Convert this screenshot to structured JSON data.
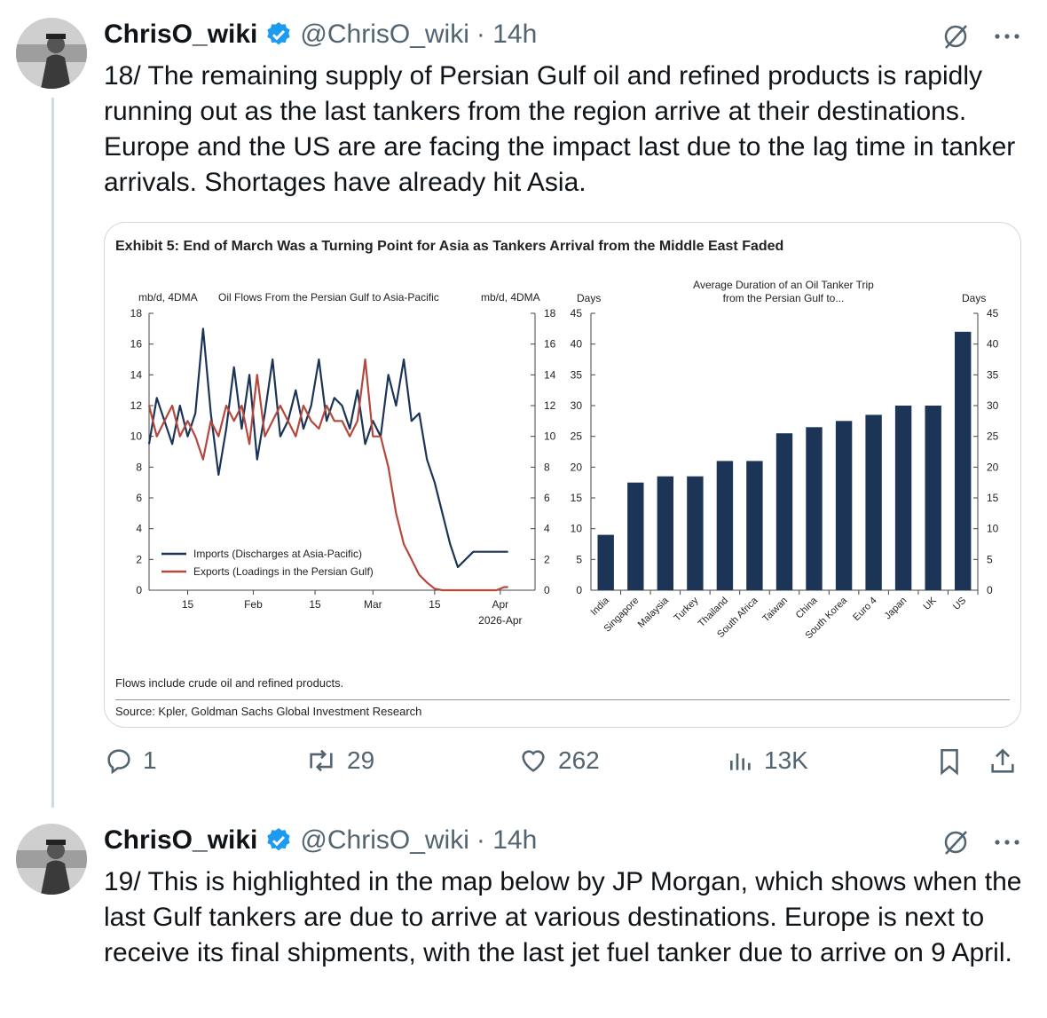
{
  "tweets": [
    {
      "name": "ChrisO_wiki",
      "handle": "@ChrisO_wiki",
      "time": "· 14h",
      "text": "18/ The remaining supply of Persian Gulf oil and refined products is rapidly running out as the last tankers from the region arrive at their destinations. Europe and the US are are facing the impact last due to the lag time in tanker arrivals. Shortages have already hit Asia.",
      "replies": "1",
      "reposts": "29",
      "likes": "262",
      "views": "13K"
    },
    {
      "name": "ChrisO_wiki",
      "handle": "@ChrisO_wiki",
      "time": "· 14h",
      "text": "19/ This is highlighted in the map below by JP Morgan, which shows when the last Gulf tankers are due to arrive at various destinations. Europe is next to receive its final shipments, with the last jet fuel tanker due to arrive on 9 April."
    }
  ],
  "exhibit": {
    "title": "Exhibit 5: End of March Was a Turning Point for Asia as Tankers Arrival from the Middle East Faded",
    "note": "Flows include crude oil and refined products.",
    "source": "Source: Kpler, Goldman Sachs Global Investment Research"
  },
  "chart_data": [
    {
      "type": "line",
      "title": "Oil Flows From the Persian Gulf to Asia-Pacific",
      "ylabel_left": "mb/d, 4DMA",
      "ylabel_right": "mb/d, 4DMA",
      "ylim": [
        0,
        18
      ],
      "yticks": [
        "0",
        "2",
        "4",
        "6",
        "8",
        "10",
        "12",
        "14",
        "16",
        "18"
      ],
      "xlim": [
        0,
        100
      ],
      "xticks": [
        {
          "label": "15",
          "x": 10
        },
        {
          "label": "Feb",
          "x": 27
        },
        {
          "label": "15",
          "x": 43
        },
        {
          "label": "Mar",
          "x": 58
        },
        {
          "label": "15",
          "x": 74
        },
        {
          "label": "Apr",
          "x": 91
        }
      ],
      "xtick_sublabel": "2026-Apr",
      "legend_position": "bottom-left",
      "series": [
        {
          "name": "Imports (Discharges at Asia-Pacific)",
          "color": "#1c3557",
          "x": [
            0,
            2,
            4,
            6,
            8,
            10,
            12,
            14,
            16,
            18,
            20,
            22,
            24,
            26,
            28,
            30,
            32,
            34,
            36,
            38,
            40,
            42,
            44,
            46,
            48,
            50,
            52,
            54,
            56,
            58,
            60,
            62,
            64,
            66,
            68,
            70,
            72,
            74,
            76,
            78,
            80,
            82,
            84,
            86,
            88,
            90,
            92,
            93
          ],
          "y": [
            9.5,
            12.5,
            11,
            9.5,
            12,
            10,
            11.5,
            17,
            11.5,
            7.5,
            10.5,
            14.5,
            10.5,
            14,
            8.5,
            11.5,
            15,
            10,
            11,
            13,
            10.5,
            12,
            15,
            11,
            12.5,
            12,
            10.5,
            13,
            9.5,
            11,
            10,
            14,
            12,
            15,
            11,
            11.5,
            8.5,
            7,
            5,
            3,
            1.5,
            2,
            2.5,
            2.5,
            2.5,
            2.5,
            2.5,
            2.5
          ]
        },
        {
          "name": "Exports (Loadings in the Persian Gulf)",
          "color": "#b5483d",
          "x": [
            0,
            2,
            4,
            6,
            8,
            10,
            12,
            14,
            16,
            18,
            20,
            22,
            24,
            26,
            28,
            30,
            32,
            34,
            36,
            38,
            40,
            42,
            44,
            46,
            48,
            50,
            52,
            54,
            56,
            58,
            60,
            62,
            64,
            66,
            68,
            70,
            72,
            74,
            76,
            78,
            80,
            82,
            84,
            86,
            88,
            90,
            92,
            93
          ],
          "y": [
            12,
            10,
            11,
            12,
            10,
            11,
            10,
            8.5,
            11,
            10,
            12,
            11,
            12,
            9.5,
            14,
            10,
            11,
            12,
            11,
            10,
            12,
            11,
            10.5,
            12,
            11,
            11,
            10,
            11,
            15,
            10,
            10,
            8,
            5,
            3,
            2,
            1,
            0.5,
            0.1,
            0,
            0,
            0,
            0,
            0,
            0,
            0,
            0,
            0.2,
            0.2
          ]
        }
      ]
    },
    {
      "type": "bar",
      "title": "Average Duration of an Oil Tanker Trip from the Persian Gulf to...",
      "ylabel_left": "Days",
      "ylabel_right": "Days",
      "ylim": [
        0,
        45
      ],
      "yticks": [
        "0",
        "5",
        "10",
        "15",
        "20",
        "25",
        "30",
        "35",
        "40",
        "45"
      ],
      "color": "#1c3557",
      "categories": [
        "India",
        "Singapore",
        "Malaysia",
        "Turkey",
        "Thailand",
        "South Africa",
        "Taiwan",
        "China",
        "South Korea",
        "Euro 4",
        "Japan",
        "UK",
        "US"
      ],
      "values": [
        9,
        17.5,
        18.5,
        18.5,
        21,
        21,
        25.5,
        26.5,
        27.5,
        28.5,
        30,
        30,
        42
      ]
    }
  ]
}
